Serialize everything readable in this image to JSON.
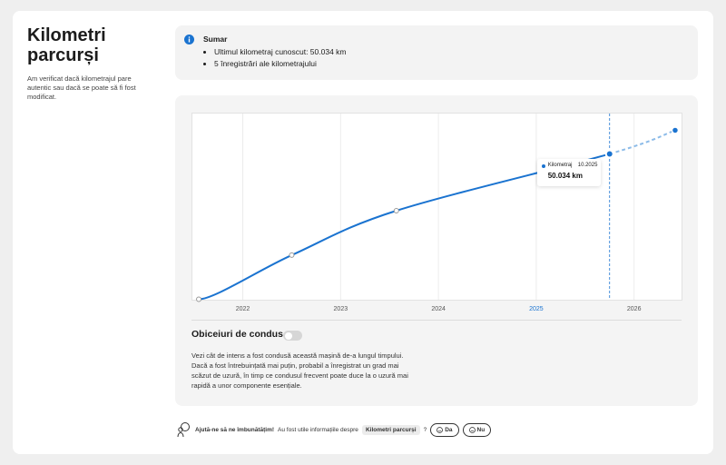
{
  "sidebar": {
    "title": "Kilometri parcurși",
    "description": "Am verificat dacă kilometrajul pare autentic sau dacă se poate să fi fost modificat."
  },
  "summary": {
    "title": "Sumar",
    "items": [
      "Ultimul kilometraj cunoscut: 50.034 km",
      "5 înregistrări ale kilometrajului"
    ]
  },
  "chart_data": {
    "type": "line",
    "x": [
      2021.55,
      2022.5,
      2023.57,
      2025.75,
      2026.42
    ],
    "series": [
      {
        "name": "Kilometraj",
        "color": "#1a73d0",
        "values": [
          300,
          15400,
          30600,
          50034,
          58100
        ],
        "value_labels": [
          null,
          null,
          null,
          "50.034 km",
          null
        ],
        "projected": [
          false,
          false,
          false,
          false,
          true
        ]
      }
    ],
    "tooltip_date": "10.2025",
    "xlim": [
      2021.48,
      2026.49
    ],
    "xticks": [
      2022,
      2023,
      2024,
      2025,
      2026
    ],
    "ylim": [
      0,
      64000
    ],
    "grid": true
  },
  "driving_habits": {
    "title": "Obiceiuri de condus",
    "toggle_on": false,
    "lines": [
      "Vezi cât de intens a fost condusă această mașină de-a lungul timpului.",
      "Dacă a fost întrebuințată mai puțin, probabil a înregistrat un grad mai",
      "scăzut de uzură, în timp ce condusul frecvent poate duce la o uzură mai",
      "rapidă a unor componente esențiale."
    ]
  },
  "feedback": {
    "prompt": "Ajută-ne să ne îmbunătățim!",
    "question": "Au fost utile informațiile despre",
    "topic": "Kilometri parcurși",
    "question_end": "?",
    "yes": "Da",
    "no": "Nu"
  }
}
